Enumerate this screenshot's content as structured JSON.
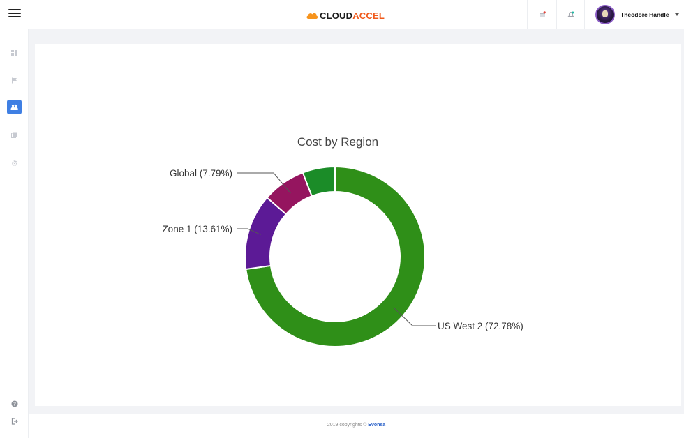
{
  "header": {
    "logo": {
      "part1": "CLOUD",
      "part2": "ACCEL"
    },
    "user": {
      "name": "Theodore Handle"
    }
  },
  "sidebar": {
    "items": [
      {
        "name": "dashboard",
        "icon": "grid-icon"
      },
      {
        "name": "flags",
        "icon": "flag-icon"
      },
      {
        "name": "users",
        "icon": "users-icon",
        "active": true
      },
      {
        "name": "reports",
        "icon": "copy-icon"
      },
      {
        "name": "settings",
        "icon": "gear-icon"
      },
      {
        "name": "help",
        "icon": "question-icon"
      },
      {
        "name": "logout",
        "icon": "logout-icon"
      }
    ]
  },
  "chart_data": {
    "type": "pie",
    "title": "Cost by Region",
    "categories": [
      "US West 2",
      "Zone 1",
      "Global",
      ""
    ],
    "values": [
      72.78,
      13.61,
      7.79,
      5.82
    ],
    "labels": [
      "US West 2 (72.78%)",
      "Zone 1 (13.61%)",
      "Global (7.79%)",
      ""
    ],
    "colors": [
      "#2f8f18",
      "#5c1a96",
      "#95155f",
      "#1b8c28"
    ]
  },
  "footer": {
    "text": "2019 copyrights © ",
    "brand": "Evonea"
  }
}
